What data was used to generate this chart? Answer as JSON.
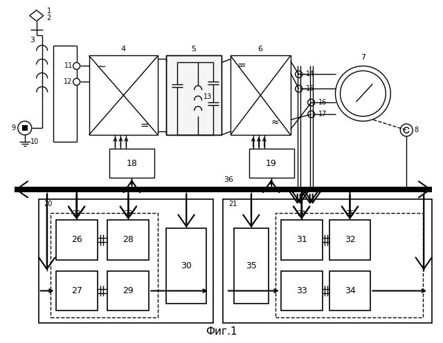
{
  "title": "Фиг.1",
  "bg_color": "#ffffff",
  "line_color": "#000000",
  "fig_width": 6.4,
  "fig_height": 4.96,
  "dpi": 100
}
